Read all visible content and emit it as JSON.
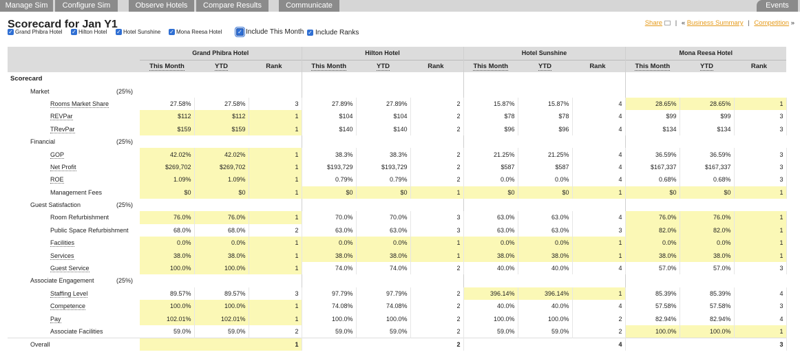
{
  "nav": {
    "tabs": [
      "Manage Sim",
      "Configure Sim",
      "Observe Hotels",
      "Compare Results",
      "Communicate"
    ],
    "events": "Events"
  },
  "page": {
    "title": "Scorecard for Jan Y1"
  },
  "filters": {
    "hotels": [
      "Grand Phibra Hotel",
      "Hilton Hotel",
      "Hotel Sunshine",
      "Mona Reesa Hotel"
    ],
    "include_month": "Include This Month",
    "include_ranks": "Include Ranks",
    "check": "✓"
  },
  "links": {
    "share": "Share",
    "sep": "|",
    "prefix": "«",
    "business_summary": "Business Summary",
    "competition": "Competition",
    "suffix": "»"
  },
  "table": {
    "hotels": [
      "Grand Phibra Hotel",
      "Hilton Hotel",
      "Hotel Sunshine",
      "Mona Reesa Hotel"
    ],
    "cols": [
      "This Month",
      "YTD",
      "Rank"
    ],
    "scorecard": "Scorecard",
    "overall": {
      "label": "Overall",
      "ranks": [
        "1",
        "2",
        "4",
        "3"
      ]
    },
    "categories": [
      {
        "name": "Market",
        "weight": "(25%)",
        "rows": [
          {
            "label": "Rooms Market Share",
            "u": true,
            "v": [
              [
                "27.58%",
                "27.58%",
                "3"
              ],
              [
                "27.89%",
                "27.89%",
                "2"
              ],
              [
                "15.87%",
                "15.87%",
                "4"
              ],
              [
                "28.65%",
                "28.65%",
                "1"
              ]
            ],
            "hi": [
              3
            ]
          },
          {
            "label": "REVPar",
            "u": true,
            "v": [
              [
                "$112",
                "$112",
                "1"
              ],
              [
                "$104",
                "$104",
                "2"
              ],
              [
                "$78",
                "$78",
                "4"
              ],
              [
                "$99",
                "$99",
                "3"
              ]
            ],
            "hi": [
              0
            ]
          },
          {
            "label": "TRevPar",
            "u": true,
            "v": [
              [
                "$159",
                "$159",
                "1"
              ],
              [
                "$140",
                "$140",
                "2"
              ],
              [
                "$96",
                "$96",
                "4"
              ],
              [
                "$134",
                "$134",
                "3"
              ]
            ],
            "hi": [
              0
            ]
          }
        ]
      },
      {
        "name": "Financial",
        "weight": "(25%)",
        "rows": [
          {
            "label": "GOP",
            "u": true,
            "v": [
              [
                "42.02%",
                "42.02%",
                "1"
              ],
              [
                "38.3%",
                "38.3%",
                "2"
              ],
              [
                "21.25%",
                "21.25%",
                "4"
              ],
              [
                "36.59%",
                "36.59%",
                "3"
              ]
            ],
            "hi": [
              0
            ]
          },
          {
            "label": "Net Profit",
            "u": true,
            "v": [
              [
                "$269,702",
                "$269,702",
                "1"
              ],
              [
                "$193,729",
                "$193,729",
                "2"
              ],
              [
                "$587",
                "$587",
                "4"
              ],
              [
                "$167,337",
                "$167,337",
                "3"
              ]
            ],
            "hi": [
              0
            ]
          },
          {
            "label": "ROE",
            "u": true,
            "v": [
              [
                "1.09%",
                "1.09%",
                "1"
              ],
              [
                "0.79%",
                "0.79%",
                "2"
              ],
              [
                "0.0%",
                "0.0%",
                "4"
              ],
              [
                "0.68%",
                "0.68%",
                "3"
              ]
            ],
            "hi": [
              0
            ]
          },
          {
            "label": "Management Fees",
            "u": false,
            "v": [
              [
                "$0",
                "$0",
                "1"
              ],
              [
                "$0",
                "$0",
                "1"
              ],
              [
                "$0",
                "$0",
                "1"
              ],
              [
                "$0",
                "$0",
                "1"
              ]
            ],
            "hi": [
              0,
              1,
              2,
              3
            ]
          }
        ]
      },
      {
        "name": "Guest Satisfaction",
        "weight": "(25%)",
        "rows": [
          {
            "label": "Room Refurbishment",
            "u": false,
            "v": [
              [
                "76.0%",
                "76.0%",
                "1"
              ],
              [
                "70.0%",
                "70.0%",
                "3"
              ],
              [
                "63.0%",
                "63.0%",
                "4"
              ],
              [
                "76.0%",
                "76.0%",
                "1"
              ]
            ],
            "hi": [
              0,
              3
            ]
          },
          {
            "label": "Public Space Refurbishment",
            "u": false,
            "v": [
              [
                "68.0%",
                "68.0%",
                "2"
              ],
              [
                "63.0%",
                "63.0%",
                "3"
              ],
              [
                "63.0%",
                "63.0%",
                "3"
              ],
              [
                "82.0%",
                "82.0%",
                "1"
              ]
            ],
            "hi": [
              3
            ]
          },
          {
            "label": "Facilities",
            "u": true,
            "v": [
              [
                "0.0%",
                "0.0%",
                "1"
              ],
              [
                "0.0%",
                "0.0%",
                "1"
              ],
              [
                "0.0%",
                "0.0%",
                "1"
              ],
              [
                "0.0%",
                "0.0%",
                "1"
              ]
            ],
            "hi": [
              0,
              1,
              2,
              3
            ]
          },
          {
            "label": "Services",
            "u": true,
            "v": [
              [
                "38.0%",
                "38.0%",
                "1"
              ],
              [
                "38.0%",
                "38.0%",
                "1"
              ],
              [
                "38.0%",
                "38.0%",
                "1"
              ],
              [
                "38.0%",
                "38.0%",
                "1"
              ]
            ],
            "hi": [
              0,
              1,
              2,
              3
            ]
          },
          {
            "label": "Guest Service",
            "u": true,
            "v": [
              [
                "100.0%",
                "100.0%",
                "1"
              ],
              [
                "74.0%",
                "74.0%",
                "2"
              ],
              [
                "40.0%",
                "40.0%",
                "4"
              ],
              [
                "57.0%",
                "57.0%",
                "3"
              ]
            ],
            "hi": [
              0
            ]
          }
        ]
      },
      {
        "name": "Associate Engagement",
        "weight": "(25%)",
        "rows": [
          {
            "label": "Staffing Level",
            "u": true,
            "v": [
              [
                "89.57%",
                "89.57%",
                "3"
              ],
              [
                "97.79%",
                "97.79%",
                "2"
              ],
              [
                "396.14%",
                "396.14%",
                "1"
              ],
              [
                "85.39%",
                "85.39%",
                "4"
              ]
            ],
            "hi": [
              2
            ]
          },
          {
            "label": "Competence",
            "u": true,
            "v": [
              [
                "100.0%",
                "100.0%",
                "1"
              ],
              [
                "74.08%",
                "74.08%",
                "2"
              ],
              [
                "40.0%",
                "40.0%",
                "4"
              ],
              [
                "57.58%",
                "57.58%",
                "3"
              ]
            ],
            "hi": [
              0
            ]
          },
          {
            "label": "Pay",
            "u": true,
            "v": [
              [
                "102.01%",
                "102.01%",
                "1"
              ],
              [
                "100.0%",
                "100.0%",
                "2"
              ],
              [
                "100.0%",
                "100.0%",
                "2"
              ],
              [
                "82.94%",
                "82.94%",
                "4"
              ]
            ],
            "hi": [
              0
            ]
          },
          {
            "label": "Associate Facilities",
            "u": false,
            "v": [
              [
                "59.0%",
                "59.0%",
                "2"
              ],
              [
                "59.0%",
                "59.0%",
                "2"
              ],
              [
                "59.0%",
                "59.0%",
                "2"
              ],
              [
                "100.0%",
                "100.0%",
                "1"
              ]
            ],
            "hi": [
              3
            ]
          }
        ]
      }
    ]
  },
  "colors": {
    "highlight": "#fbf8b6",
    "nav_tab": "#8b8b8b",
    "link": "#e59a1a"
  }
}
